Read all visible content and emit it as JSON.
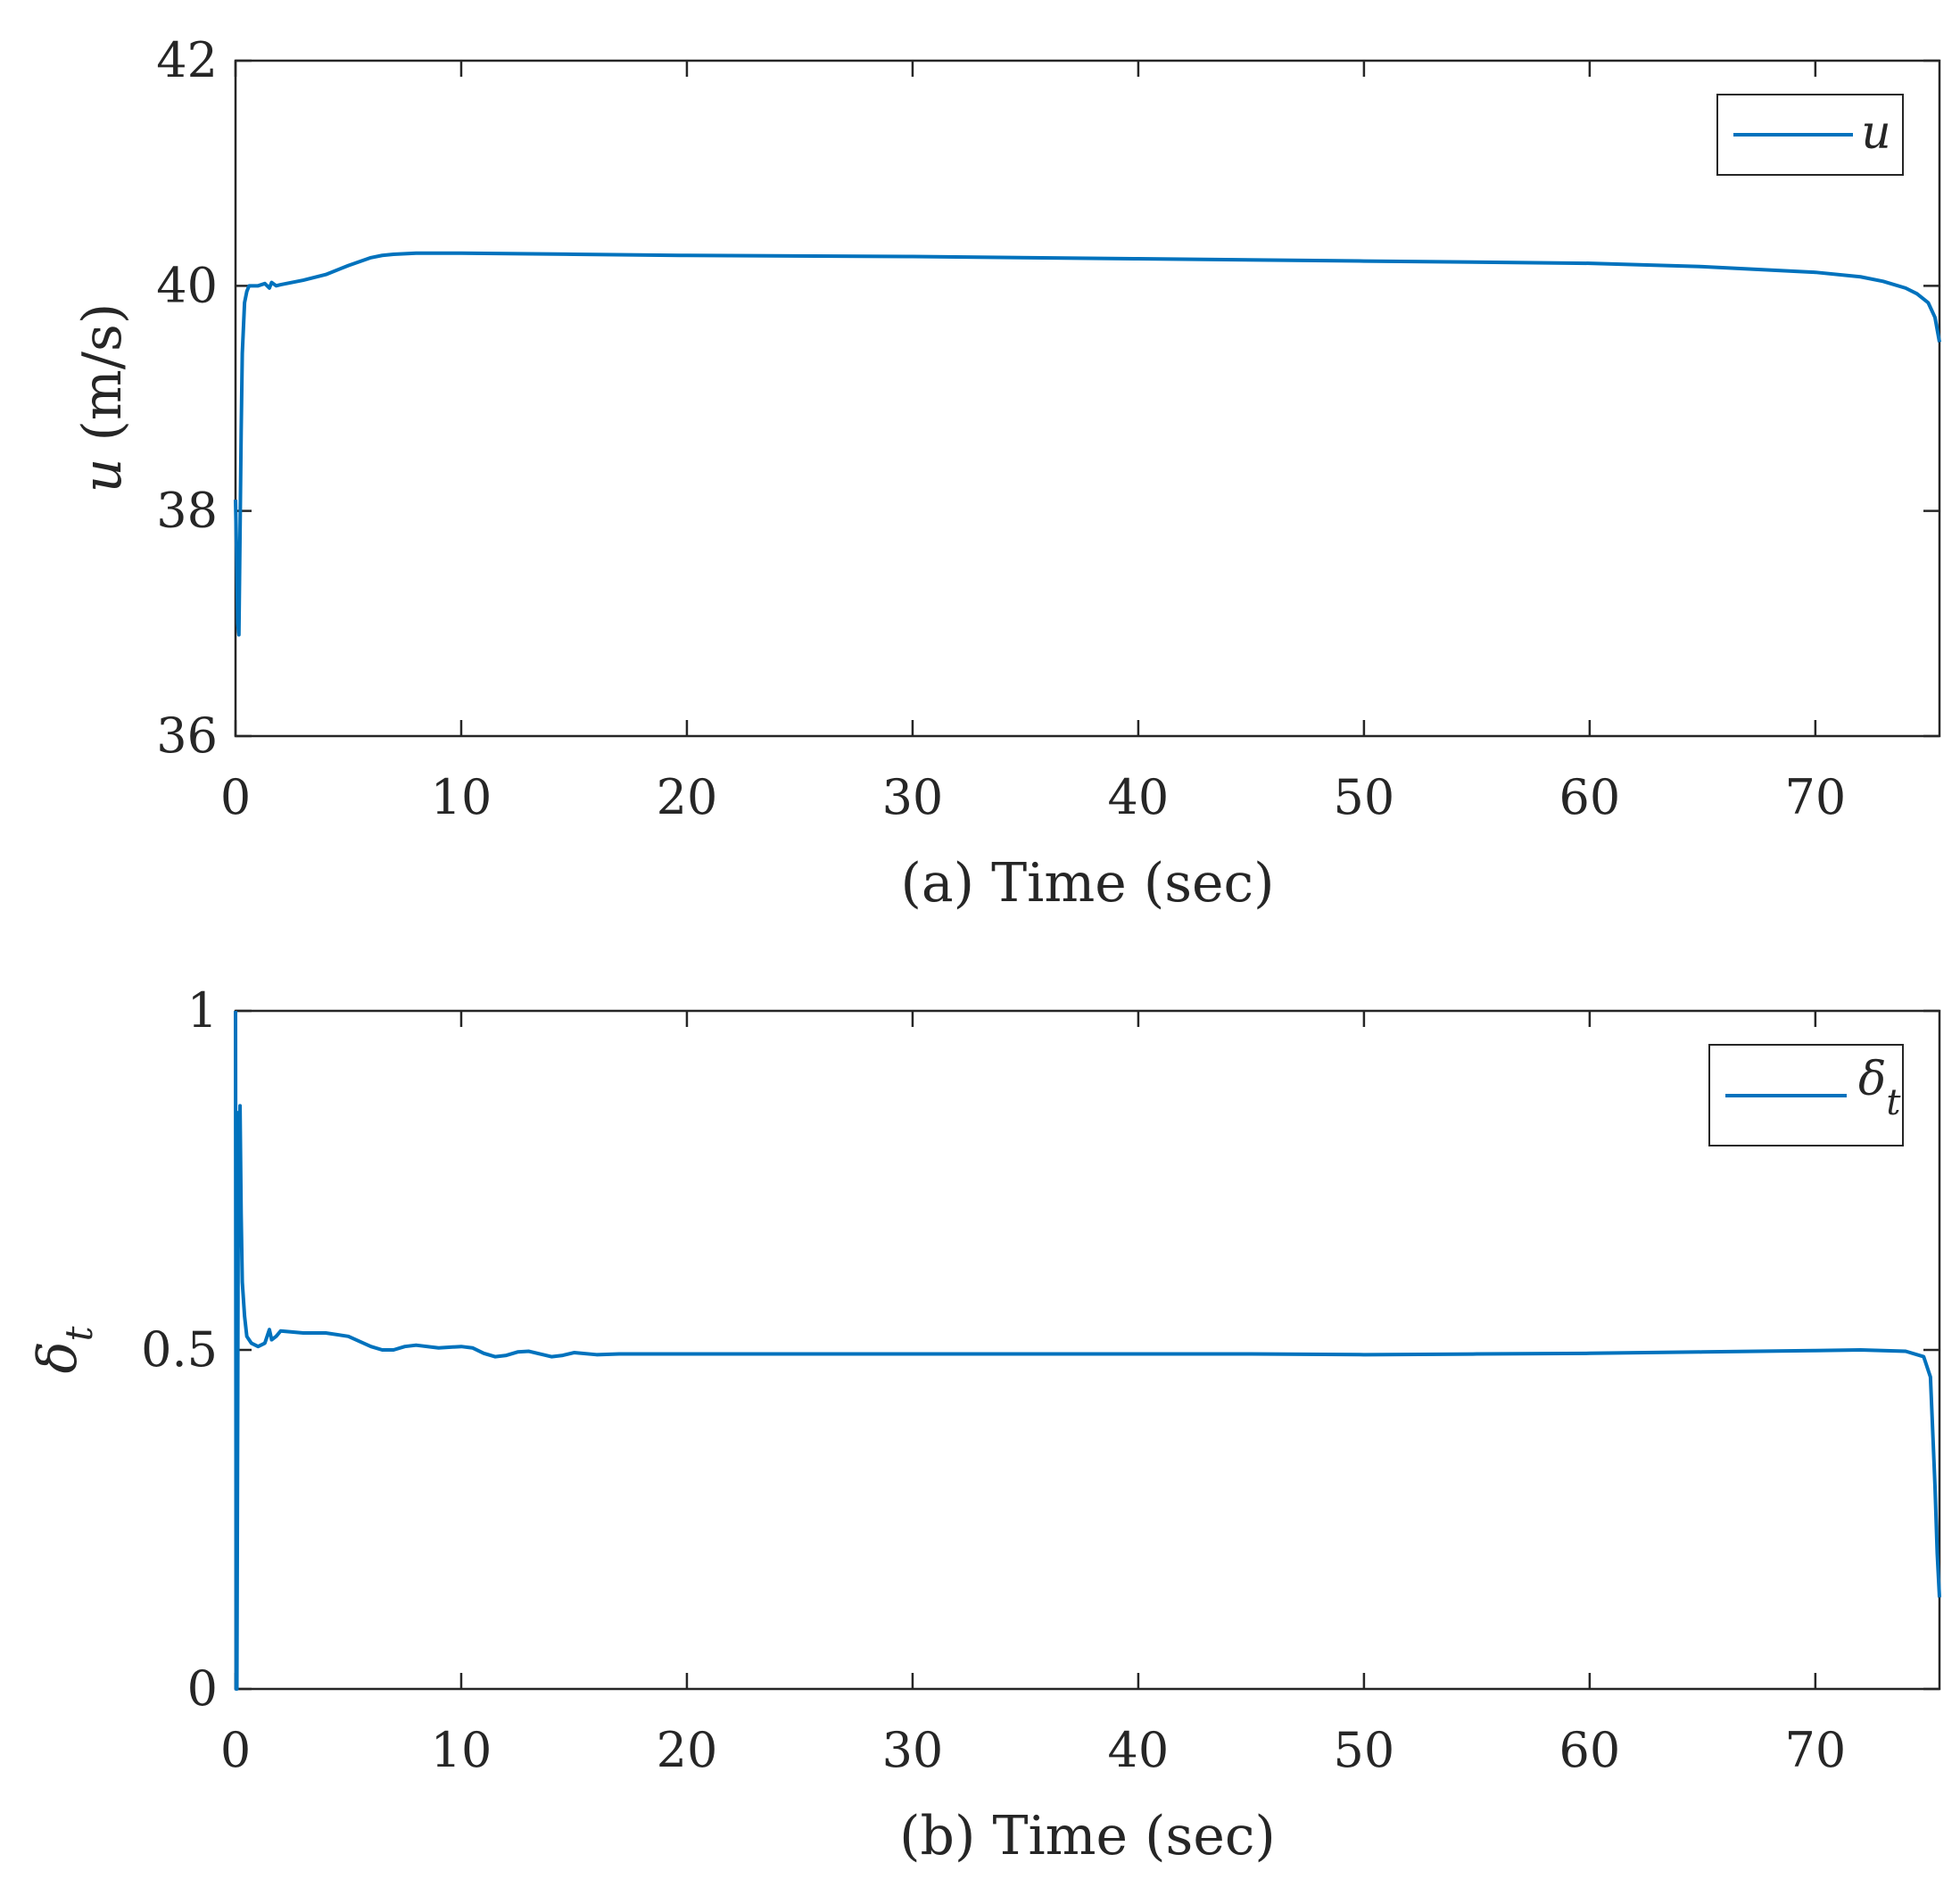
{
  "chart_data": [
    {
      "type": "line",
      "panel": "a",
      "xlabel": "(a) Time (sec)",
      "ylabel_symbol": "u",
      "ylabel_unit": " (m/s)",
      "xlim": [
        0,
        75.5
      ],
      "ylim": [
        36,
        42
      ],
      "xticks": [
        "0",
        "10",
        "20",
        "30",
        "40",
        "50",
        "60",
        "70"
      ],
      "yticks": [
        "36",
        "38",
        "40",
        "42"
      ],
      "legend": {
        "label": "u",
        "position": "top-right"
      },
      "series": [
        {
          "name": "u",
          "color": "#0072BD",
          "x": [
            0,
            0.05,
            0.1,
            0.15,
            0.2,
            0.25,
            0.3,
            0.4,
            0.5,
            0.6,
            0.8,
            1.0,
            1.3,
            1.5,
            1.6,
            1.8,
            2,
            3,
            4,
            5,
            6,
            6.5,
            7,
            8,
            10,
            15,
            20,
            30,
            40,
            50,
            60,
            65,
            70,
            72,
            73,
            74,
            74.5,
            75,
            75.3,
            75.5
          ],
          "y": [
            38.1,
            37.6,
            37.0,
            36.9,
            37.8,
            38.7,
            39.4,
            39.85,
            39.95,
            40.0,
            40.0,
            40.0,
            40.02,
            39.98,
            40.03,
            40.0,
            40.01,
            40.05,
            40.1,
            40.18,
            40.25,
            40.27,
            40.28,
            40.29,
            40.29,
            40.28,
            40.27,
            40.26,
            40.24,
            40.22,
            40.2,
            40.17,
            40.12,
            40.08,
            40.04,
            39.98,
            39.93,
            39.85,
            39.72,
            39.5
          ]
        }
      ]
    },
    {
      "type": "line",
      "panel": "b",
      "xlabel": "(b) Time (sec)",
      "ylabel_main": "δ",
      "ylabel_sub": "t",
      "xlim": [
        0,
        75.5
      ],
      "ylim": [
        0,
        1
      ],
      "xticks": [
        "0",
        "10",
        "20",
        "30",
        "40",
        "50",
        "60",
        "70"
      ],
      "yticks": [
        "0",
        "0.5",
        "1"
      ],
      "legend": {
        "label_main": "δ",
        "label_sub": "t",
        "position": "top-right"
      },
      "series": [
        {
          "name": "δt",
          "color": "#0072BD",
          "x": [
            0,
            0.03,
            0.06,
            0.1,
            0.13,
            0.16,
            0.2,
            0.25,
            0.3,
            0.4,
            0.5,
            0.7,
            1.0,
            1.3,
            1.5,
            1.6,
            1.8,
            2.0,
            3,
            4,
            5,
            6,
            6.5,
            7,
            7.5,
            8,
            9,
            10,
            10.5,
            11,
            11.5,
            12,
            12.5,
            13,
            13.5,
            14,
            14.5,
            15,
            16,
            17,
            18,
            20,
            30,
            40,
            45,
            50,
            55,
            60,
            65,
            70,
            72,
            74,
            74.8,
            75.1,
            75.3,
            75.4,
            75.5
          ],
          "y": [
            1.0,
            0.0,
            0.0,
            0.45,
            0.85,
            0.75,
            0.86,
            0.7,
            0.6,
            0.55,
            0.52,
            0.51,
            0.505,
            0.51,
            0.53,
            0.515,
            0.52,
            0.528,
            0.525,
            0.525,
            0.52,
            0.505,
            0.5,
            0.5,
            0.505,
            0.507,
            0.503,
            0.505,
            0.503,
            0.495,
            0.49,
            0.492,
            0.497,
            0.498,
            0.494,
            0.49,
            0.492,
            0.496,
            0.493,
            0.494,
            0.494,
            0.494,
            0.494,
            0.494,
            0.494,
            0.493,
            0.494,
            0.495,
            0.497,
            0.499,
            0.5,
            0.498,
            0.49,
            0.46,
            0.3,
            0.2,
            0.135
          ]
        }
      ]
    }
  ]
}
